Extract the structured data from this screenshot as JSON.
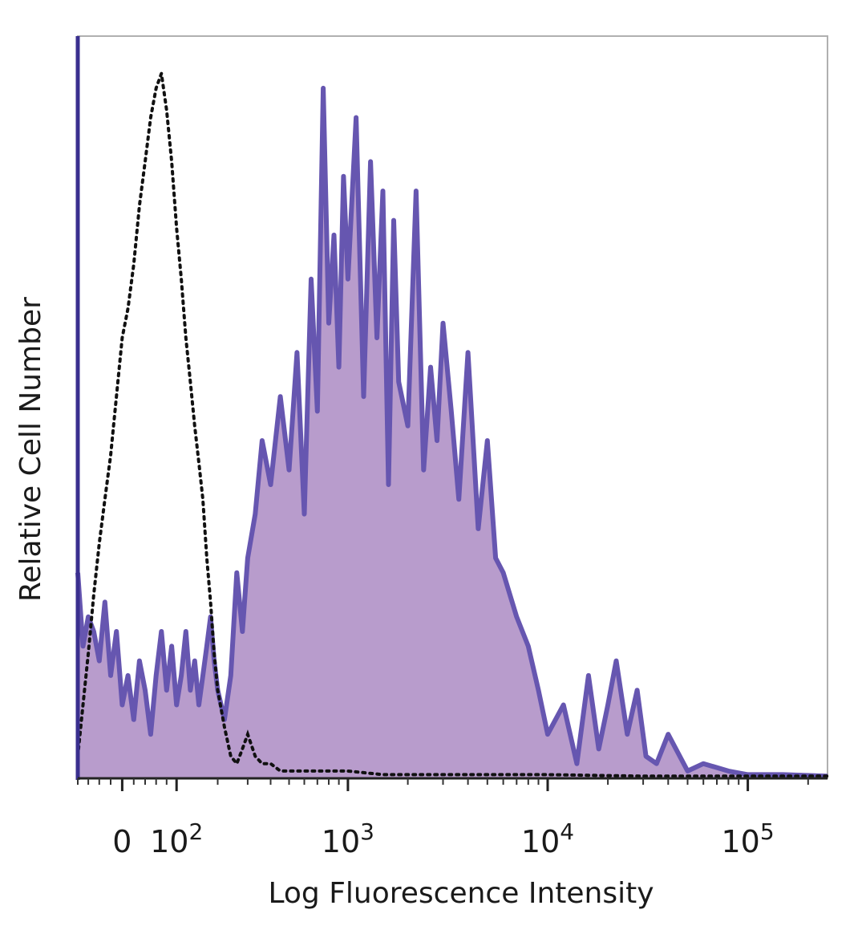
{
  "chart_data": {
    "type": "area",
    "xlabel": "Log Fluorescence Intensity",
    "ylabel": "Relative Cell Number",
    "x_scale": "biexponential",
    "xlim": [
      -80,
      250000
    ],
    "ylim": [
      0,
      100
    ],
    "grid": false,
    "x_ticks": [
      {
        "value": 0,
        "base": "0",
        "exp": ""
      },
      {
        "value": 100,
        "base": "10",
        "exp": "2"
      },
      {
        "value": 1000,
        "base": "10",
        "exp": "3"
      },
      {
        "value": 10000,
        "base": "10",
        "exp": "4"
      },
      {
        "value": 100000,
        "base": "10",
        "exp": "5"
      }
    ],
    "series": [
      {
        "style": "dotted",
        "color": "#111111",
        "x": [
          -80,
          -70,
          -60,
          -50,
          -40,
          -30,
          -20,
          -10,
          0,
          10,
          20,
          30,
          40,
          50,
          60,
          70,
          80,
          90,
          100,
          110,
          120,
          130,
          140,
          150,
          160,
          170,
          180,
          190,
          200,
          220,
          240,
          260,
          280,
          300,
          330,
          360,
          400,
          450,
          500,
          600,
          700,
          800,
          1000,
          1500,
          2000,
          3000,
          5000,
          10000,
          30000,
          100000,
          250000
        ],
        "y": [
          3,
          10,
          17,
          25,
          32,
          38,
          44,
          52,
          60,
          64,
          70,
          78,
          84,
          90,
          94,
          96,
          91,
          84,
          75,
          68,
          60,
          54,
          48,
          43,
          38,
          30,
          24,
          17,
          12,
          7,
          3,
          2,
          4,
          6,
          3,
          2,
          2,
          1,
          1,
          1,
          1,
          1,
          1,
          0.5,
          0.5,
          0.5,
          0.5,
          0.5,
          0.3,
          0.3,
          0.3
        ]
      },
      {
        "style": "filled",
        "color": "#6656b0",
        "fill": "#b89ccc",
        "x": [
          -80,
          -70,
          -60,
          -50,
          -40,
          -30,
          -20,
          -10,
          0,
          10,
          20,
          30,
          40,
          50,
          60,
          70,
          80,
          90,
          100,
          110,
          120,
          130,
          140,
          150,
          160,
          170,
          180,
          190,
          200,
          220,
          240,
          260,
          280,
          300,
          330,
          360,
          400,
          450,
          500,
          550,
          600,
          650,
          700,
          750,
          800,
          850,
          900,
          950,
          1000,
          1100,
          1200,
          1300,
          1400,
          1500,
          1600,
          1700,
          1800,
          2000,
          2200,
          2400,
          2600,
          2800,
          3000,
          3300,
          3600,
          4000,
          4500,
          5000,
          5500,
          6000,
          7000,
          8000,
          9000,
          10000,
          12000,
          14000,
          16000,
          18000,
          20000,
          22000,
          25000,
          28000,
          31000,
          35000,
          40000,
          50000,
          60000,
          80000,
          100000,
          150000,
          250000
        ],
        "y": [
          28,
          18,
          22,
          20,
          16,
          24,
          14,
          20,
          10,
          14,
          8,
          16,
          12,
          6,
          14,
          20,
          12,
          18,
          10,
          14,
          20,
          12,
          16,
          10,
          14,
          18,
          22,
          16,
          12,
          8,
          14,
          28,
          20,
          30,
          36,
          46,
          40,
          52,
          42,
          58,
          36,
          68,
          50,
          94,
          62,
          74,
          56,
          82,
          68,
          90,
          52,
          84,
          60,
          80,
          40,
          76,
          54,
          48,
          80,
          42,
          56,
          46,
          62,
          50,
          38,
          58,
          34,
          46,
          30,
          28,
          22,
          18,
          12,
          6,
          10,
          2,
          14,
          4,
          10,
          16,
          6,
          12,
          3,
          2,
          6,
          1,
          2,
          1,
          0.5,
          0.5,
          0.3
        ]
      }
    ]
  }
}
